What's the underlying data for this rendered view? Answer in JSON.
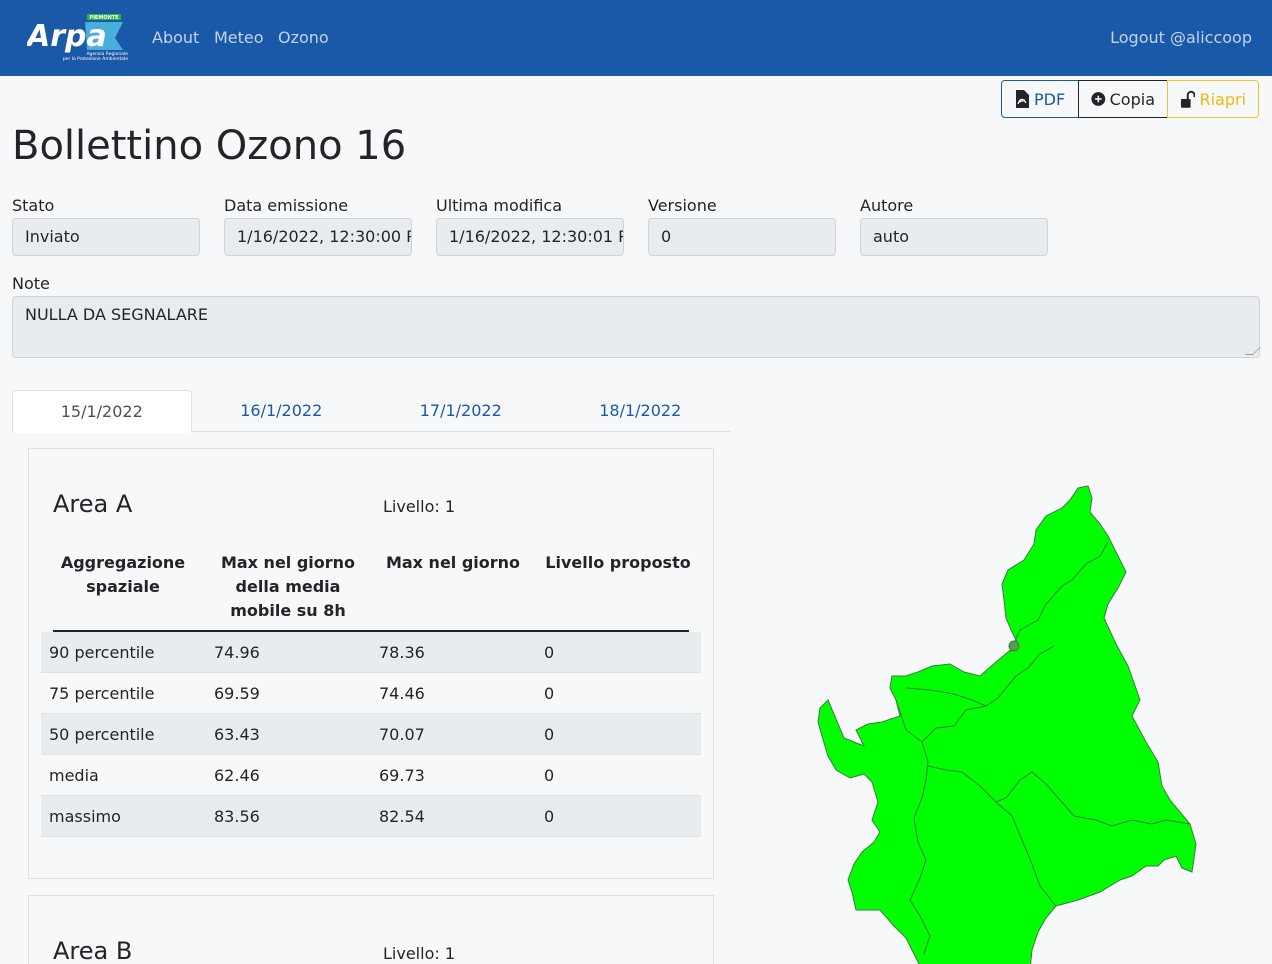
{
  "nav": {
    "logo_text": "Arpa",
    "logo_top_text": "PIEMONTE",
    "logo_sub1": "Agenzia Regionale",
    "logo_sub2": "per la Protezione Ambientale",
    "links": [
      "About",
      "Meteo",
      "Ozono"
    ],
    "logout": "Logout @aliccoop"
  },
  "toolbar": {
    "pdf_label": "PDF",
    "copia_label": "Copia",
    "riapri_label": "Riapri"
  },
  "page_title": "Bollettino Ozono 16",
  "fields": {
    "stato": {
      "label": "Stato",
      "value": "Inviato"
    },
    "data_emissione": {
      "label": "Data emissione",
      "value": "1/16/2022, 12:30:00 P"
    },
    "ultima_modifica": {
      "label": "Ultima modifica",
      "value": "1/16/2022, 12:30:01 P"
    },
    "versione": {
      "label": "Versione",
      "value": "0"
    },
    "autore": {
      "label": "Autore",
      "value": "auto"
    }
  },
  "note": {
    "label": "Note",
    "value": "NULLA DA SEGNALARE"
  },
  "tabs": [
    "15/1/2022",
    "16/1/2022",
    "17/1/2022",
    "18/1/2022"
  ],
  "active_tab": 0,
  "areas": [
    {
      "title": "Area A",
      "livello": "Livello: 1",
      "headers": [
        "Aggregazione spaziale",
        "Max nel giorno della media mobile su 8h",
        "Max nel giorno",
        "Livello proposto"
      ],
      "rows": [
        [
          "90 percentile",
          "74.96",
          "78.36",
          "0"
        ],
        [
          "75 percentile",
          "69.59",
          "74.46",
          "0"
        ],
        [
          "50 percentile",
          "63.43",
          "70.07",
          "0"
        ],
        [
          "media",
          "62.46",
          "69.73",
          "0"
        ],
        [
          "massimo",
          "83.56",
          "82.54",
          "0"
        ]
      ]
    },
    {
      "title": "Area B",
      "livello": "Livello: 1"
    }
  ],
  "colors": {
    "navbar": "#1a59a8",
    "map_fill": "#00ff00",
    "riapri": "#f2b80d"
  }
}
